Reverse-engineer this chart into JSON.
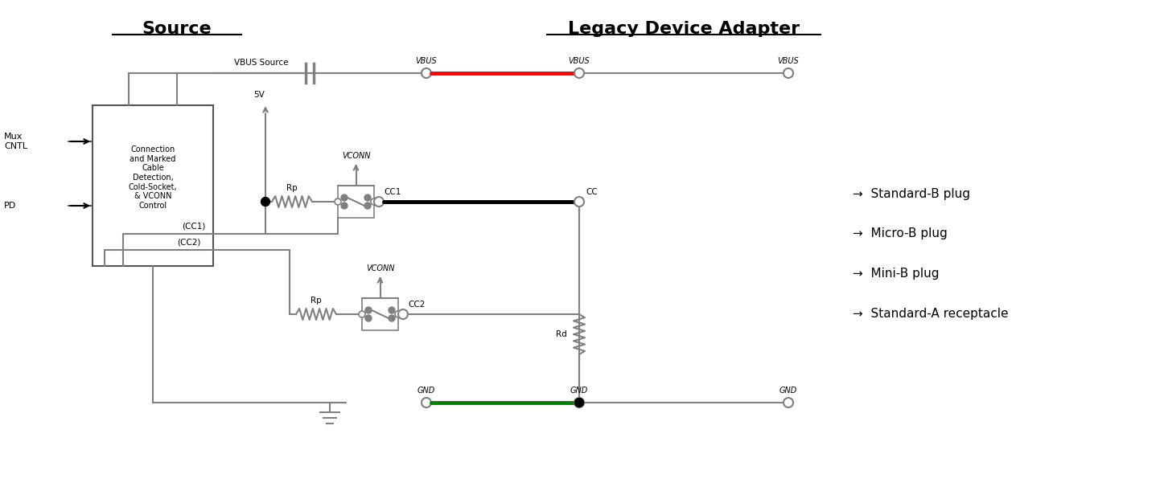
{
  "title_source": "Source",
  "title_legacy": "Legacy Device Adapter",
  "bg_color": "#ffffff",
  "wire_color": "#808080",
  "vbus_wire_color": "#ff0000",
  "cc_wire_color": "#000000",
  "gnd_wire_color": "#008000",
  "thin_wire_color": "#888888",
  "legend_items": [
    "→  Standard-B plug",
    "→  Micro-B plug",
    "→  Mini-B plug",
    "→  Standard-A receptacle"
  ],
  "labels": {
    "mux_cntl": "Mux\nCNTL",
    "pd": "PD",
    "box_text": "Connection\nand Marked\nCable\nDetection,\nCold-Socket,\n& VCONN\nControl",
    "vbus_source": "VBUS Source",
    "sv": "5V",
    "vconn1": "VCONN",
    "vconn2": "VCONN",
    "rp1": "Rp",
    "rp2": "Rp",
    "rd": "Rd",
    "cc1_label": "CC1",
    "cc2_label": "CC2",
    "cc1_bus": "(CC1)",
    "cc2_bus": "(CC2)",
    "vbus1": "VBUS",
    "vbus2": "VBUS",
    "vbus3": "VBUS",
    "cc_label": "CC",
    "gnd1": "GND",
    "gnd2": "GND",
    "gnd3": "GND"
  }
}
